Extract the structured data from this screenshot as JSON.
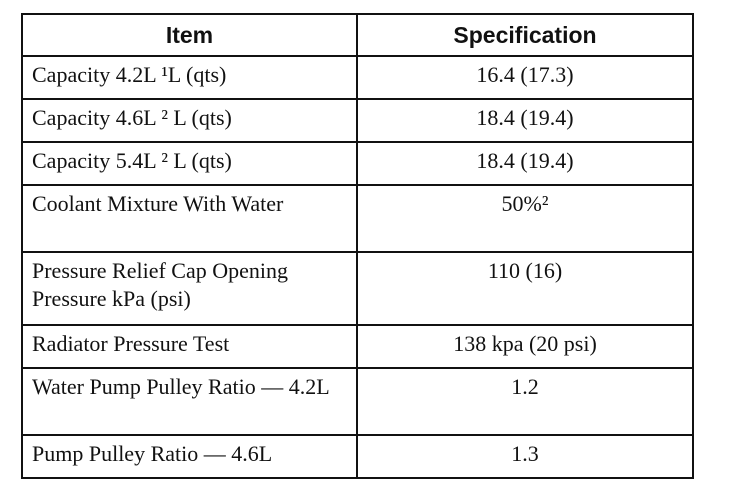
{
  "table": {
    "headers": {
      "item": "Item",
      "specification": "Specification"
    },
    "rows": [
      {
        "item": "Capacity 4.2L ¹L (qts)",
        "spec": "16.4 (17.3)"
      },
      {
        "item": "Capacity 4.6L ² L (qts)",
        "spec": "18.4 (19.4)"
      },
      {
        "item": "Capacity 5.4L ² L (qts)",
        "spec": "18.4 (19.4)"
      },
      {
        "item": "Coolant Mixture With Water",
        "spec": "50%²"
      },
      {
        "item": "Pressure Relief Cap Opening Pressure kPa (psi)",
        "spec": "110 (16)"
      },
      {
        "item": "Radiator Pressure Test",
        "spec": "138 kpa (20 psi)"
      },
      {
        "item": "Water Pump Pulley Ratio — 4.2L",
        "spec": "1.2"
      },
      {
        "item": "Pump Pulley Ratio — 4.6L",
        "spec": "1.3"
      }
    ]
  }
}
